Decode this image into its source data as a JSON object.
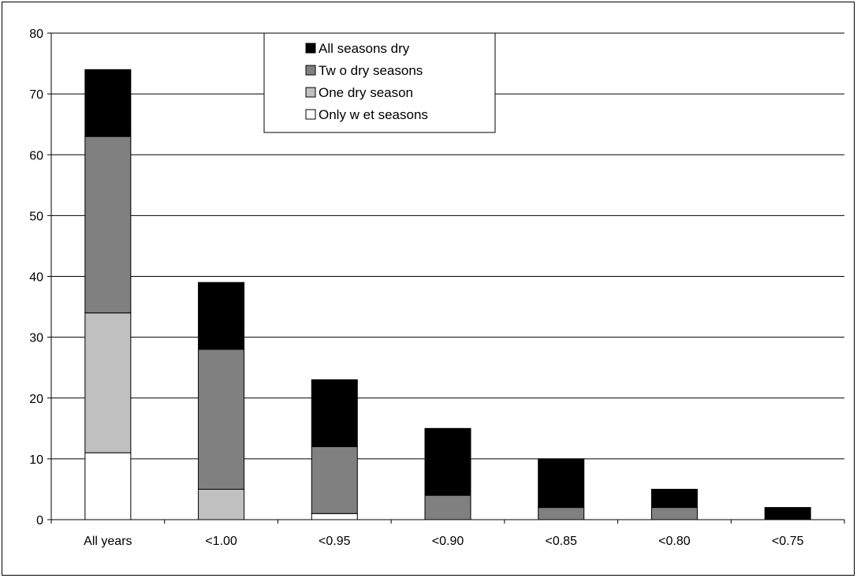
{
  "chart_data": {
    "type": "bar",
    "stacked": true,
    "categories": [
      "All years",
      "<1.00",
      "<0.95",
      "<0.90",
      "<0.85",
      "<0.80",
      "<0.75"
    ],
    "series": [
      {
        "name": "Only w et seasons",
        "color": "#ffffff",
        "values": [
          11,
          0,
          1,
          0,
          0,
          0,
          0
        ]
      },
      {
        "name": "One dry season",
        "color": "#c0c0c0",
        "values": [
          23,
          5,
          0,
          0,
          0,
          0,
          0
        ]
      },
      {
        "name": "Tw o dry seasons",
        "color": "#808080",
        "values": [
          29,
          23,
          11,
          4,
          2,
          2,
          0
        ]
      },
      {
        "name": "All seasons dry",
        "color": "#000000",
        "values": [
          11,
          11,
          11,
          11,
          8,
          3,
          2
        ]
      }
    ],
    "legend_order": [
      "All seasons dry",
      "Tw o dry seasons",
      "One dry season",
      "Only w et seasons"
    ],
    "ylim": [
      0,
      80
    ],
    "yticks": [
      0,
      10,
      20,
      30,
      40,
      50,
      60,
      70,
      80
    ],
    "grid": true,
    "legend_position": "top-center",
    "title": "",
    "xlabel": "",
    "ylabel": ""
  }
}
